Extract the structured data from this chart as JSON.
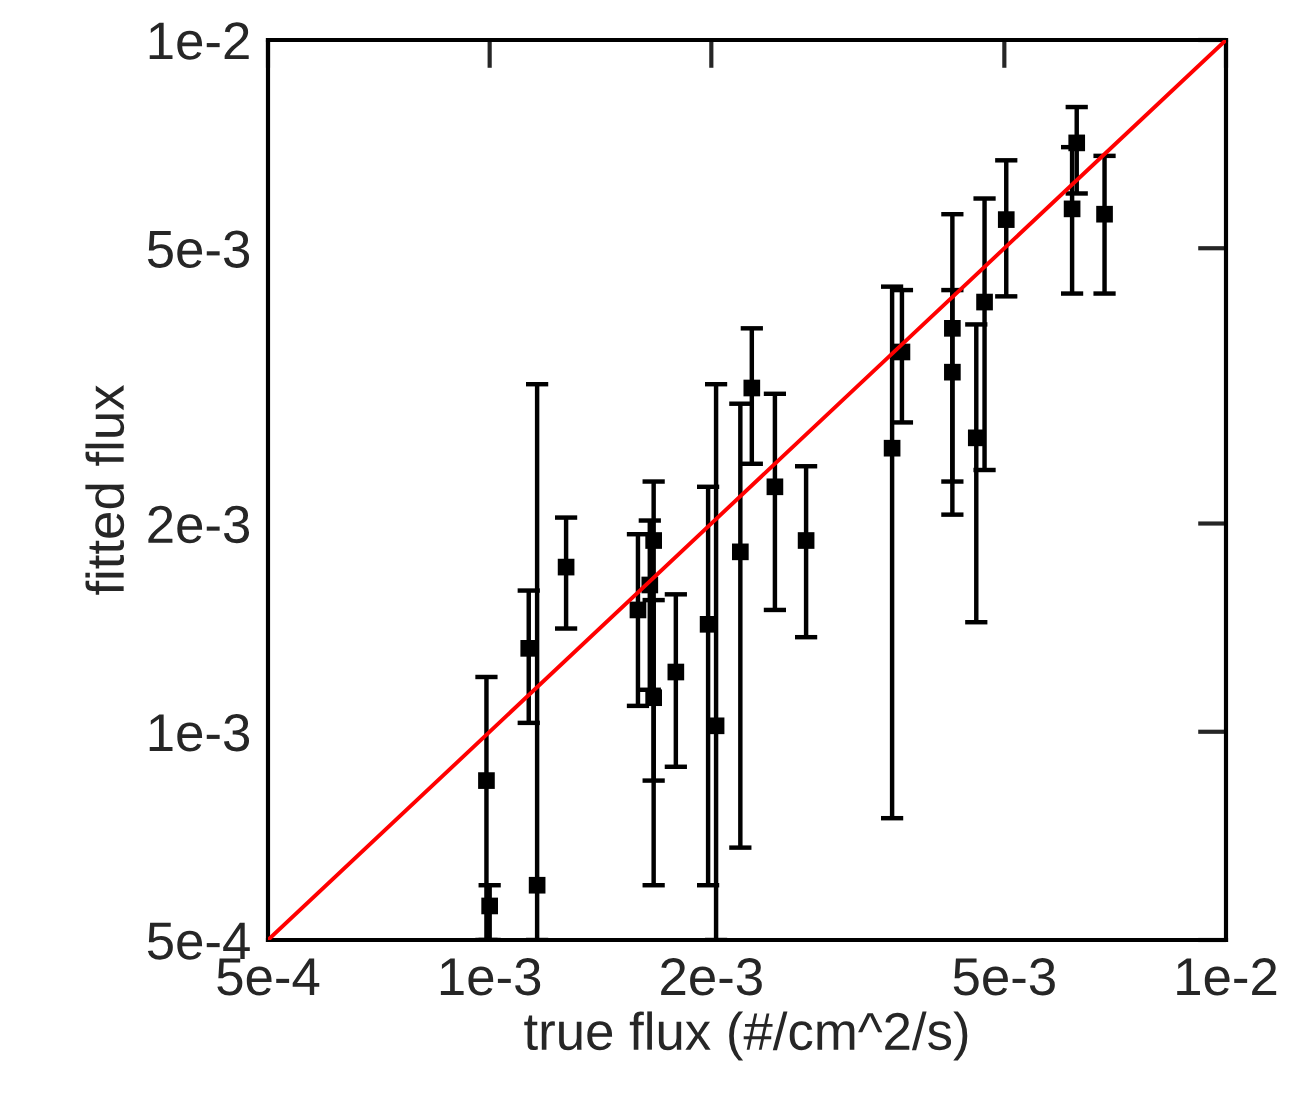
{
  "chart_data": {
    "type": "scatter",
    "xlabel": "true flux (#/cm^2/s)",
    "ylabel": "fitted flux",
    "log": "xy",
    "grid": false,
    "legend": false,
    "marker": "square",
    "xlim": [
      0.0005,
      0.01
    ],
    "ylim": [
      0.0005,
      0.01
    ],
    "xticks": [
      {
        "value": 0.0005,
        "label": "5e-4"
      },
      {
        "value": 0.001,
        "label": "1e-3"
      },
      {
        "value": 0.002,
        "label": "2e-3"
      },
      {
        "value": 0.005,
        "label": "5e-3"
      },
      {
        "value": 0.01,
        "label": "1e-2"
      }
    ],
    "yticks": [
      {
        "value": 0.0005,
        "label": "5e-4"
      },
      {
        "value": 0.001,
        "label": "1e-3"
      },
      {
        "value": 0.002,
        "label": "2e-3"
      },
      {
        "value": 0.005,
        "label": "5e-3"
      },
      {
        "value": 0.01,
        "label": "1e-2"
      }
    ],
    "series": [
      {
        "color": "#000000",
        "x": [
          0.00099,
          0.001,
          0.00113,
          0.00116,
          0.00127,
          0.00159,
          0.00167,
          0.00165,
          0.00167,
          0.00179,
          0.00198,
          0.00203,
          0.00219,
          0.00227,
          0.00244,
          0.00269,
          0.00352,
          0.00363,
          0.00425,
          0.00425,
          0.00458,
          0.0047,
          0.00503,
          0.00618,
          0.00627,
          0.00684
        ],
        "values": [
          0.00085,
          0.00056,
          0.00132,
          0.0006,
          0.00173,
          0.0015,
          0.00189,
          0.00163,
          0.00112,
          0.00122,
          0.00143,
          0.00102,
          0.00182,
          0.00314,
          0.00226,
          0.00189,
          0.00257,
          0.00354,
          0.00383,
          0.00331,
          0.00266,
          0.00418,
          0.0055,
          0.0057,
          0.0071,
          0.0056
        ],
        "errors": [
          [
            0.0005,
            0.0012
          ],
          [
            0.0005,
            0.0006
          ],
          [
            0.00103,
            0.0016
          ],
          [
            0.0005,
            0.00318
          ],
          [
            0.00141,
            0.00204
          ],
          [
            0.00109,
            0.00193
          ],
          [
            0.00085,
            0.0023
          ],
          [
            0.00115,
            0.00202
          ],
          [
            0.0006,
            0.00155
          ],
          [
            0.00089,
            0.00158
          ],
          [
            0.0006,
            0.00226
          ],
          [
            0.0005,
            0.00318
          ],
          [
            0.00068,
            0.00298
          ],
          [
            0.00244,
            0.00383
          ],
          [
            0.0015,
            0.00308
          ],
          [
            0.00137,
            0.00242
          ],
          [
            0.00075,
            0.0044
          ],
          [
            0.0028,
            0.00435
          ],
          [
            0.0023,
            0.0056
          ],
          [
            0.00206,
            0.00435
          ],
          [
            0.00144,
            0.00388
          ],
          [
            0.00239,
            0.0059
          ],
          [
            0.00426,
            0.0067
          ],
          [
            0.0043,
            0.007
          ],
          [
            0.006,
            0.008
          ],
          [
            0.0043,
            0.0068
          ]
        ]
      },
      {
        "type": "line",
        "color": "#ff0000",
        "marker": "none",
        "x": [
          0.0005,
          0.01
        ],
        "values": [
          0.0005,
          0.01
        ]
      }
    ]
  }
}
